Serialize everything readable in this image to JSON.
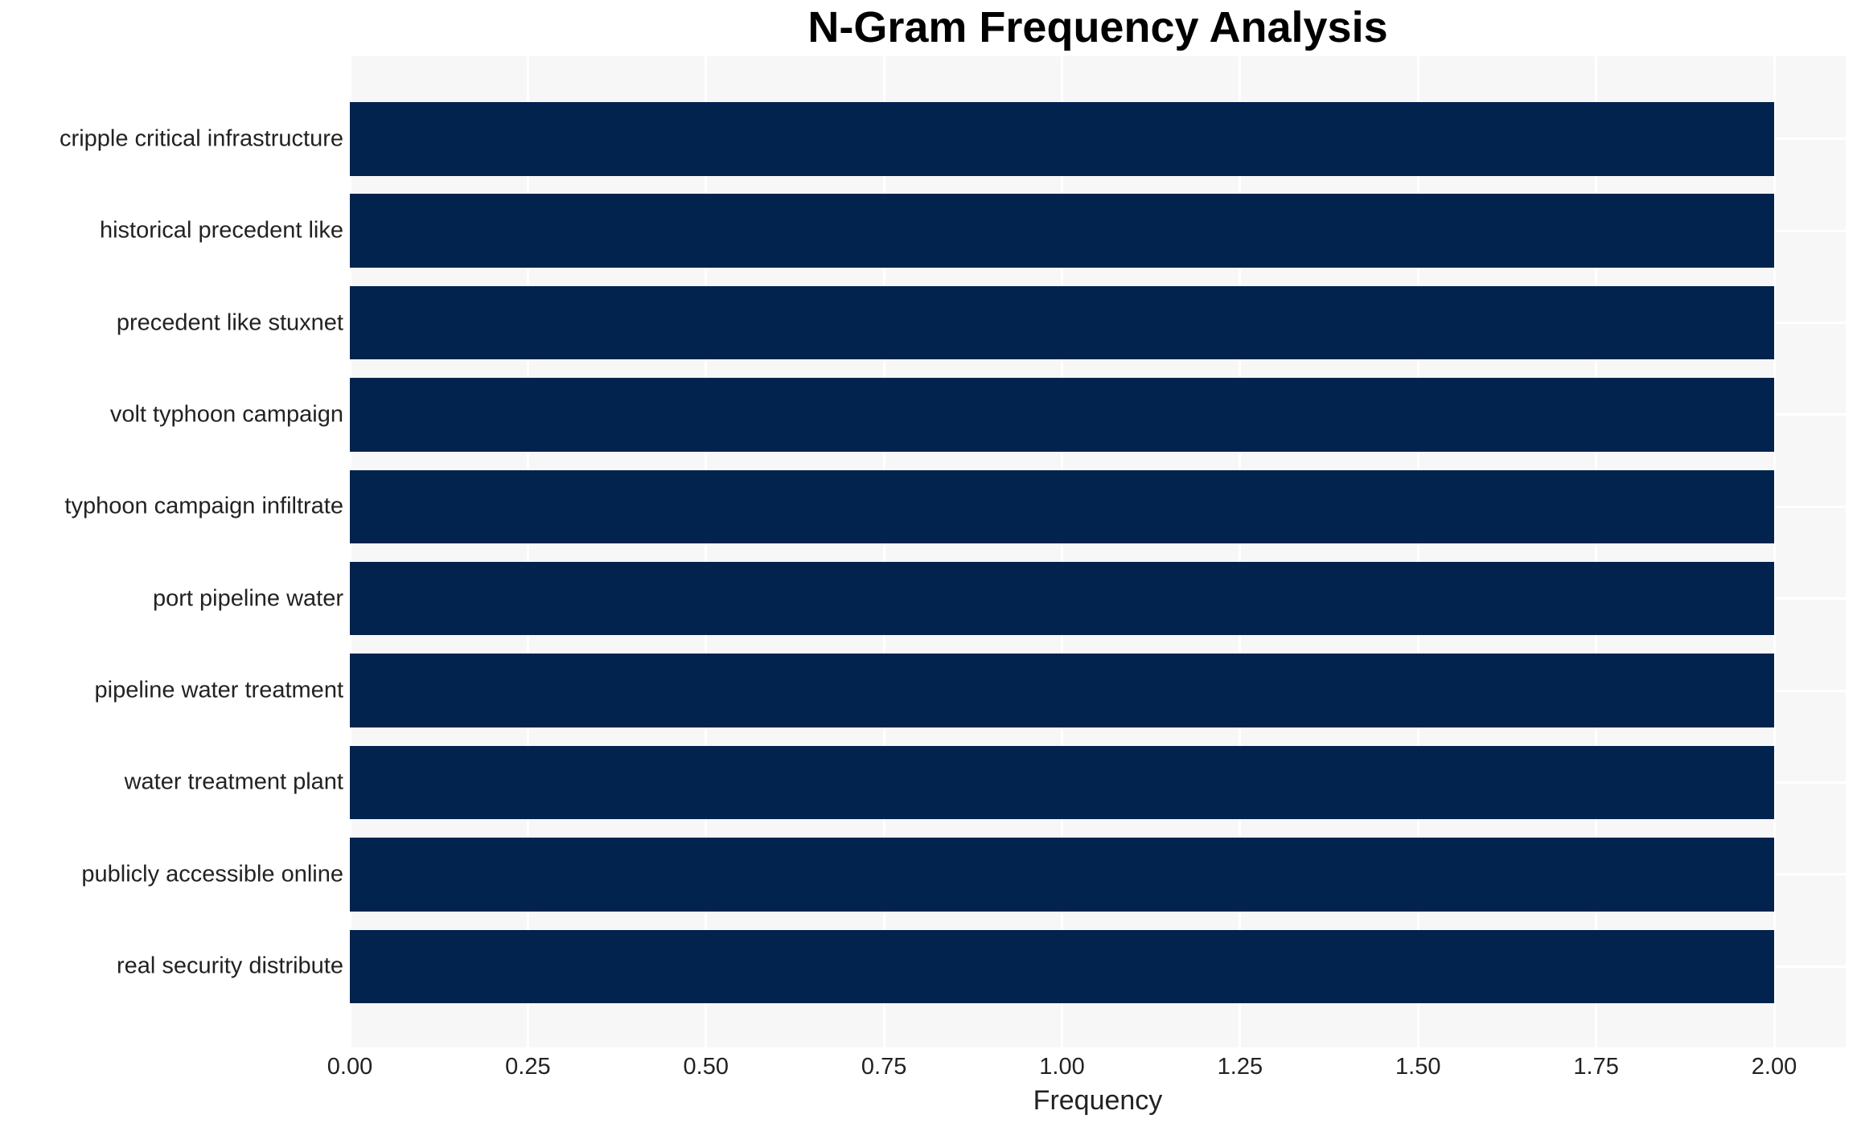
{
  "page": {
    "background": "#ffffff"
  },
  "chart_data": {
    "type": "bar",
    "orientation": "horizontal",
    "title": "N-Gram Frequency Analysis",
    "xlabel": "Frequency",
    "ylabel": "",
    "categories": [
      "cripple critical infrastructure",
      "historical precedent like",
      "precedent like stuxnet",
      "volt typhoon campaign",
      "typhoon campaign infiltrate",
      "port pipeline water",
      "pipeline water treatment",
      "water treatment plant",
      "publicly accessible online",
      "real security distribute"
    ],
    "values": [
      2,
      2,
      2,
      2,
      2,
      2,
      2,
      2,
      2,
      2
    ],
    "xlim": [
      0,
      2.1
    ],
    "xtick_values": [
      0,
      0.25,
      0.5,
      0.75,
      1.0,
      1.25,
      1.5,
      1.75,
      2.0
    ],
    "xtick_labels": [
      "0.00",
      "0.25",
      "0.50",
      "0.75",
      "1.00",
      "1.25",
      "1.50",
      "1.75",
      "2.00"
    ],
    "grid": true,
    "legend": false,
    "colors": {
      "bar": "#02234d",
      "plot_background": "#f7f7f7",
      "gridline": "#ffffff",
      "tick_text": "#222222",
      "title_text": "#000000"
    }
  }
}
